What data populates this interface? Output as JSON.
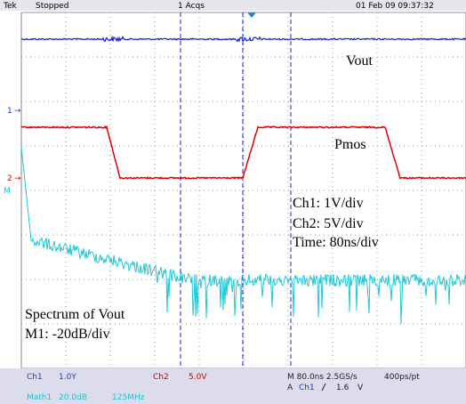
{
  "header": {
    "brand": "Tek",
    "status": "Stopped",
    "acquisitions": "1 Acqs",
    "timestamp": "01 Feb 09 09:37:32"
  },
  "screen": {
    "markers": [
      "1",
      "2",
      "M"
    ],
    "annotations": {
      "vout": "Vout",
      "pmos": "Pmos",
      "ch1_scale": "Ch1: 1V/div",
      "ch2_scale": "Ch2: 5V/div",
      "time_scale": "Time: 80ns/div",
      "spectrum": "Spectrum of Vout",
      "m1_scale": "M1: -20dB/div"
    }
  },
  "footer": {
    "ch1_label": "Ch1",
    "ch1_scale": "1.0Y",
    "ch2_label": "Ch2",
    "ch2_scale": "5.0V",
    "timebase": "M 80.0ns 2.5GS/s",
    "resolution": "400ps/pt",
    "trigger_label": "A",
    "trigger_source": "Ch1",
    "trigger_level": "1.6",
    "trigger_unit": "V",
    "math_label": "Math1",
    "math_scale": "20.0dB",
    "math_span": "125MHz"
  }
}
